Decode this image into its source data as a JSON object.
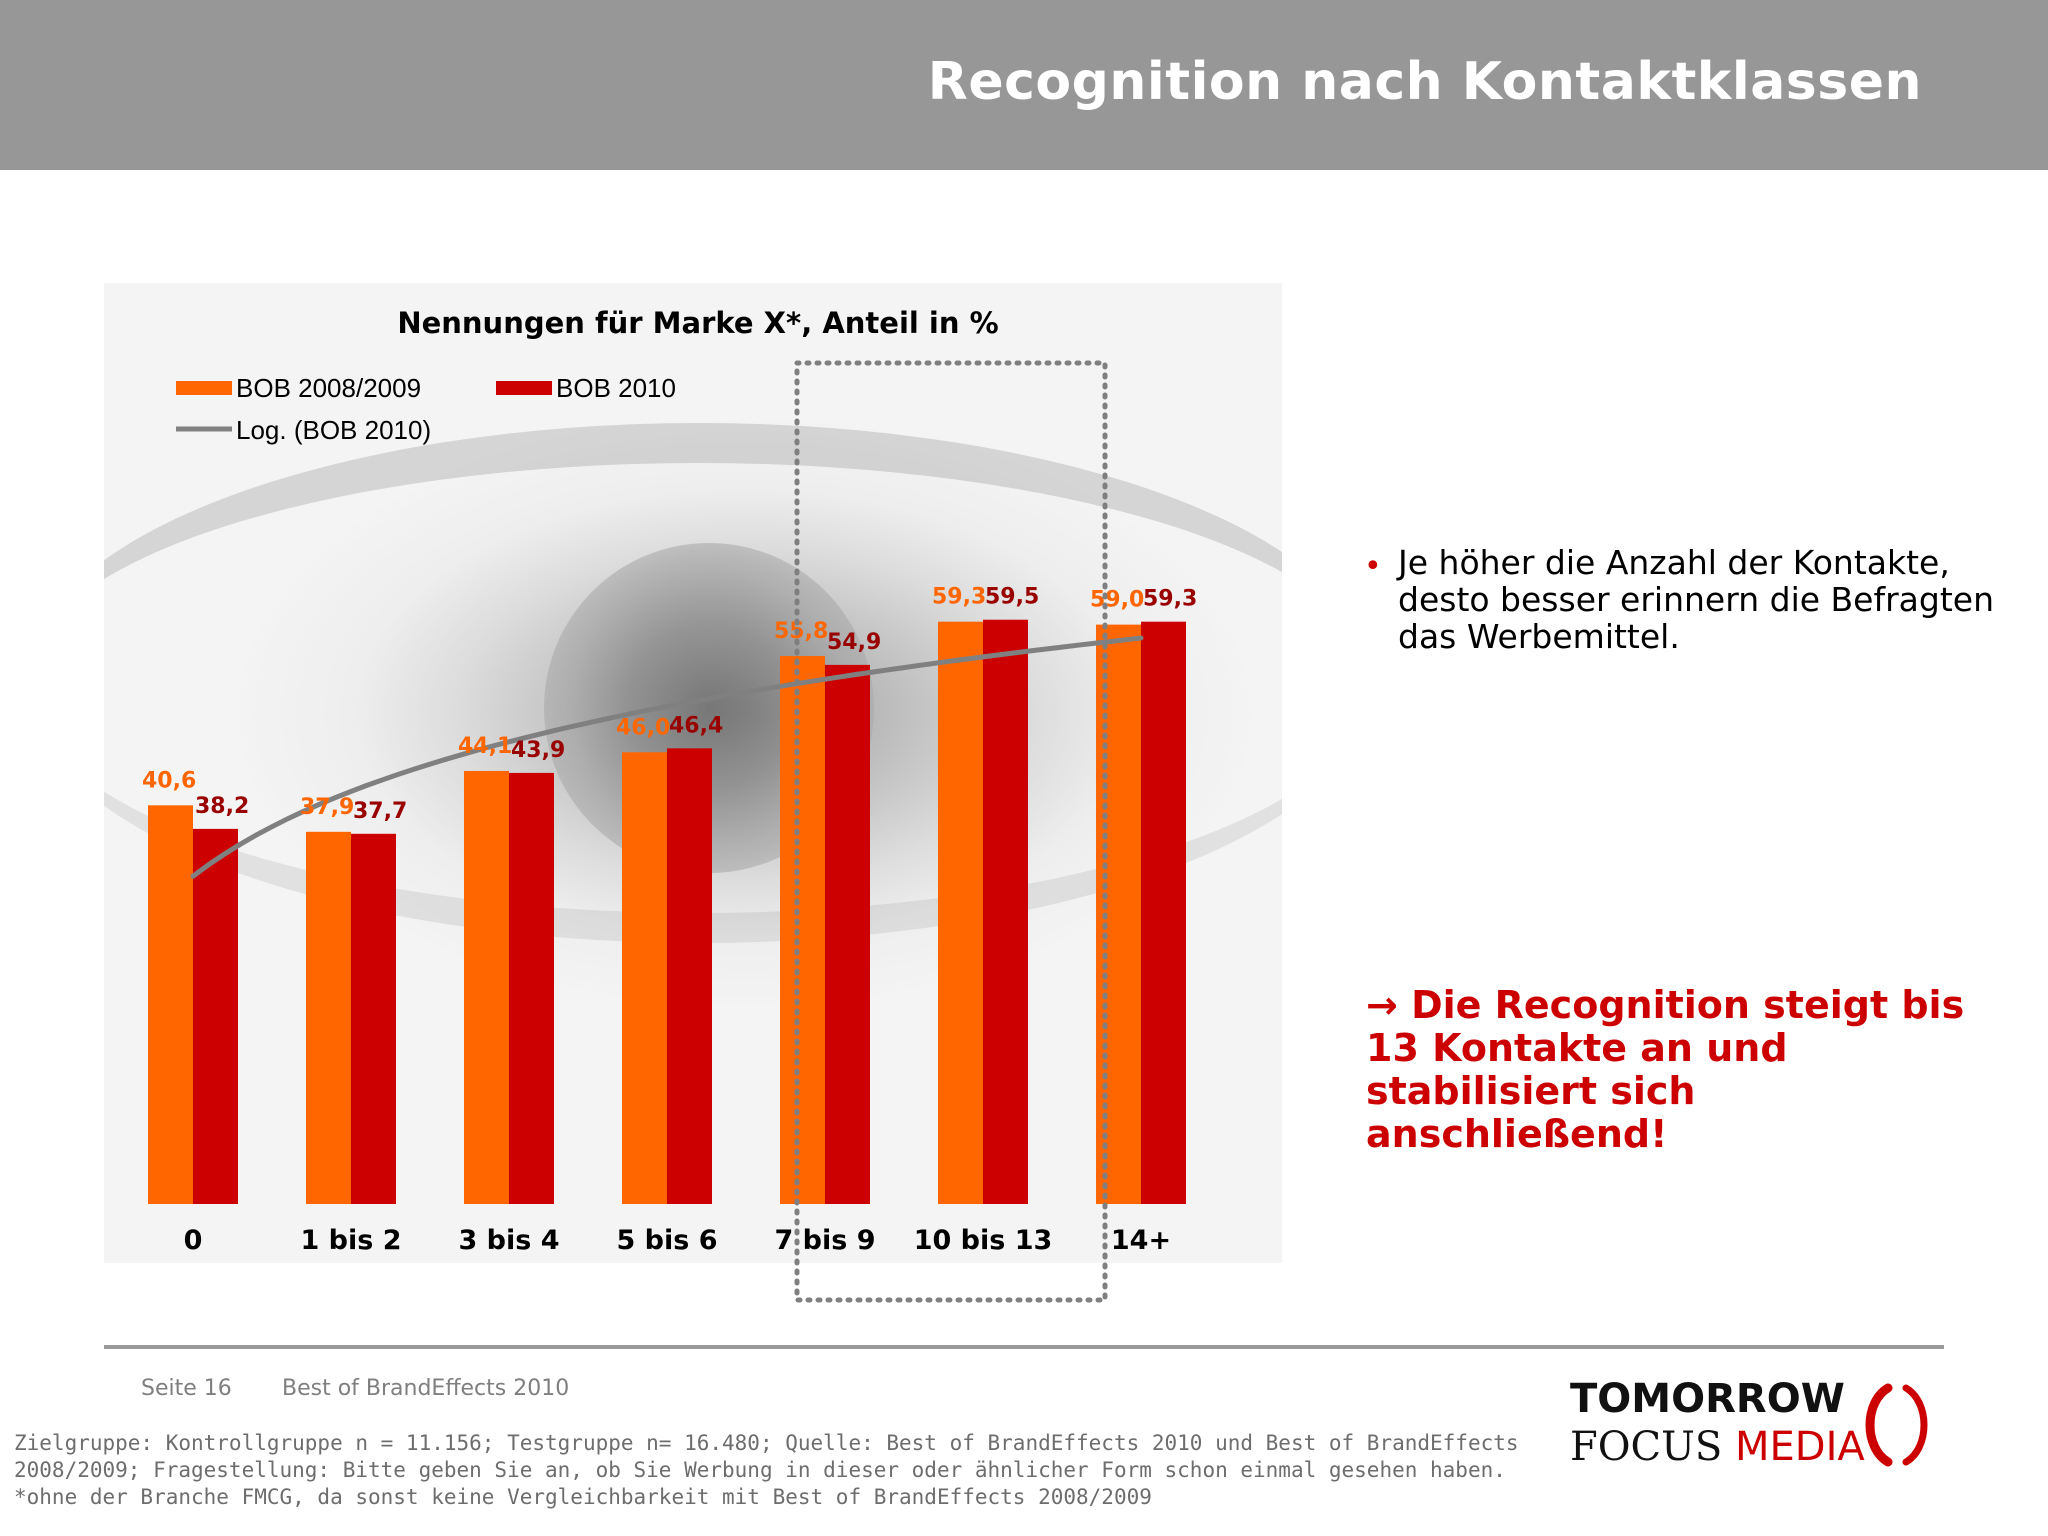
{
  "header": {
    "title": "Recognition nach Kontaktklassen"
  },
  "chart_data": {
    "type": "bar",
    "title": "Nennungen für Marke X*, Anteil in %",
    "categories": [
      "0",
      "1 bis 2",
      "3 bis 4",
      "5 bis 6",
      "7 bis 9",
      "10 bis 13",
      "14+"
    ],
    "series": [
      {
        "name": "BOB 2008/2009",
        "color": "#ff6600",
        "values": [
          40.6,
          37.9,
          44.1,
          46.0,
          55.8,
          59.3,
          59.0
        ],
        "labels": [
          "40,6",
          "37,9",
          "44,1",
          "46,0",
          "55,8",
          "59,3",
          "59,0"
        ]
      },
      {
        "name": "BOB 2010",
        "color": "#cc0000",
        "values": [
          38.2,
          37.7,
          43.9,
          46.4,
          54.9,
          59.5,
          59.3
        ],
        "labels": [
          "38,2",
          "37,7",
          "43,9",
          "46,4",
          "54,9",
          "59,5",
          "59,3"
        ]
      }
    ],
    "trendline": {
      "name": "Log. (BOB 2010)",
      "type": "logarithmic",
      "color": "#808080"
    },
    "ylim": [
      0,
      100
    ],
    "grid": false,
    "legend": "top-left",
    "highlight": {
      "categories": [
        "7 bis 9",
        "10 bis 13"
      ],
      "style": "dotted-box"
    }
  },
  "bullet": {
    "text": "Je höher die Anzahl der Kontakte, desto besser erinnern die Befragten das Werbemittel."
  },
  "conclusion": {
    "arrow": "→",
    "text": "Die Recognition steigt bis 13 Kontakte an und stabilisiert sich anschließend!"
  },
  "footer": {
    "page": "Seite 16",
    "doc_title": "Best of BrandEffects 2010",
    "note_lines": [
      "Zielgruppe: Kontrollgruppe n = 11.156; Testgruppe n= 16.480; Quelle: Best of BrandEffects 2010 und Best of BrandEffects",
      "2008/2009; Fragestellung: Bitte geben Sie an, ob Sie Werbung in dieser oder ähnlicher Form schon einmal gesehen haben.",
      "*ohne der Branche FMCG, da sonst keine Vergleichbarkeit mit Best of BrandEffects 2008/2009"
    ]
  },
  "logo": {
    "line1": "TOMORROW",
    "line2_a": "FOCUS",
    "line2_b": "MEDIA"
  },
  "colors": {
    "header_bg": "#979797",
    "accent_red": "#cc0000",
    "orange": "#ff6600"
  }
}
